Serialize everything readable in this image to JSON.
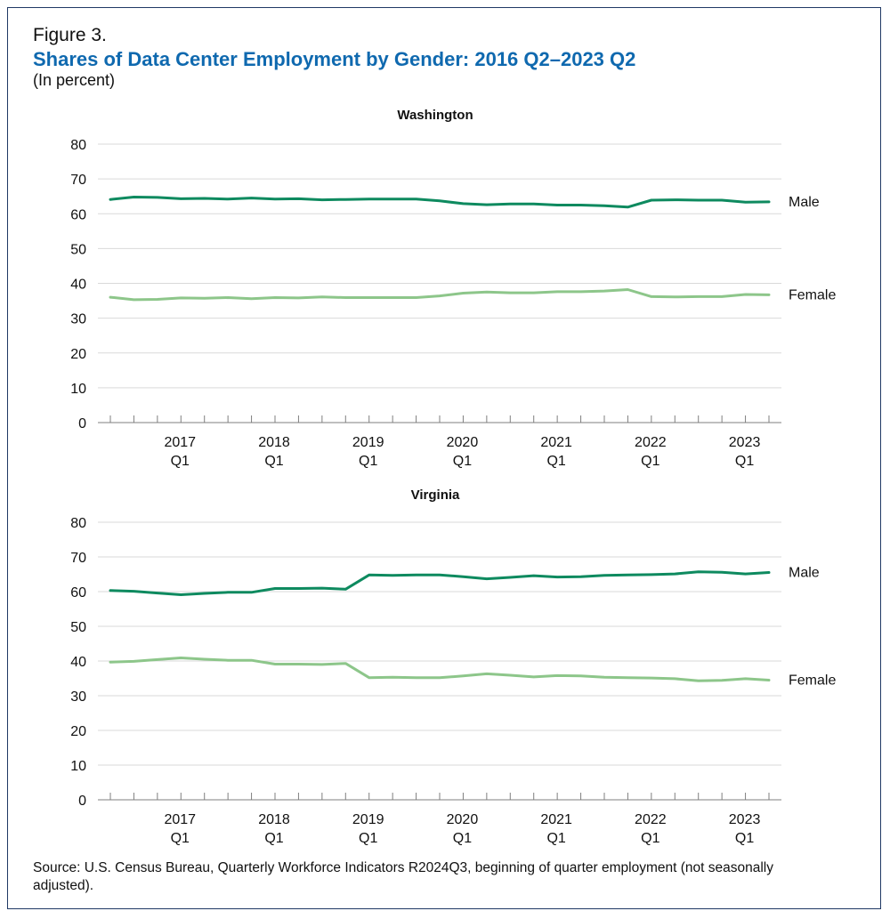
{
  "figure_label": "Figure 3.",
  "title": "Shares of Data Center Employment by Gender: 2016 Q2–2023 Q2",
  "subtitle": "(In percent)",
  "source": "Source: U.S. Census Bureau, Quarterly Workforce Indicators R2024Q3, beginning of quarter employment (not seasonally adjusted).",
  "colors": {
    "male": "#0e8a5f",
    "female": "#8dc68a",
    "grid": "#d9d9d9",
    "axis": "#7f7f7f",
    "title": "#0f69af",
    "border": "#1f3864"
  },
  "chart_data": [
    {
      "type": "line",
      "title": "Washington",
      "ylim": [
        0,
        80
      ],
      "yticks": [
        0,
        10,
        20,
        30,
        40,
        50,
        60,
        70,
        80
      ],
      "x": [
        "2016 Q2",
        "2016 Q3",
        "2016 Q4",
        "2017 Q1",
        "2017 Q2",
        "2017 Q3",
        "2017 Q4",
        "2018 Q1",
        "2018 Q2",
        "2018 Q3",
        "2018 Q4",
        "2019 Q1",
        "2019 Q2",
        "2019 Q3",
        "2019 Q4",
        "2020 Q1",
        "2020 Q2",
        "2020 Q3",
        "2020 Q4",
        "2021 Q1",
        "2021 Q2",
        "2021 Q3",
        "2021 Q4",
        "2022 Q1",
        "2022 Q2",
        "2022 Q3",
        "2022 Q4",
        "2023 Q1",
        "2023 Q2"
      ],
      "x_tick_labels": [
        {
          "index": 3,
          "year": "2017",
          "quarter": "Q1"
        },
        {
          "index": 7,
          "year": "2018",
          "quarter": "Q1"
        },
        {
          "index": 11,
          "year": "2019",
          "quarter": "Q1"
        },
        {
          "index": 15,
          "year": "2020",
          "quarter": "Q1"
        },
        {
          "index": 19,
          "year": "2021",
          "quarter": "Q1"
        },
        {
          "index": 23,
          "year": "2022",
          "quarter": "Q1"
        },
        {
          "index": 27,
          "year": "2023",
          "quarter": "Q1"
        }
      ],
      "grid": true,
      "series": [
        {
          "name": "Male",
          "color_key": "male",
          "values": [
            64.1,
            64.8,
            64.7,
            64.3,
            64.4,
            64.2,
            64.5,
            64.2,
            64.3,
            64.0,
            64.1,
            64.2,
            64.2,
            64.2,
            63.7,
            62.9,
            62.6,
            62.8,
            62.8,
            62.5,
            62.5,
            62.3,
            61.9,
            63.9,
            64.0,
            63.9,
            63.9,
            63.3,
            63.4
          ]
        },
        {
          "name": "Female",
          "color_key": "female",
          "values": [
            36.0,
            35.3,
            35.4,
            35.8,
            35.7,
            35.9,
            35.6,
            35.9,
            35.8,
            36.1,
            35.9,
            35.9,
            35.9,
            35.9,
            36.4,
            37.2,
            37.5,
            37.3,
            37.3,
            37.6,
            37.6,
            37.8,
            38.2,
            36.2,
            36.1,
            36.2,
            36.2,
            36.8,
            36.7
          ]
        }
      ]
    },
    {
      "type": "line",
      "title": "Virginia",
      "ylim": [
        0,
        80
      ],
      "yticks": [
        0,
        10,
        20,
        30,
        40,
        50,
        60,
        70,
        80
      ],
      "x": [
        "2016 Q2",
        "2016 Q3",
        "2016 Q4",
        "2017 Q1",
        "2017 Q2",
        "2017 Q3",
        "2017 Q4",
        "2018 Q1",
        "2018 Q2",
        "2018 Q3",
        "2018 Q4",
        "2019 Q1",
        "2019 Q2",
        "2019 Q3",
        "2019 Q4",
        "2020 Q1",
        "2020 Q2",
        "2020 Q3",
        "2020 Q4",
        "2021 Q1",
        "2021 Q2",
        "2021 Q3",
        "2021 Q4",
        "2022 Q1",
        "2022 Q2",
        "2022 Q3",
        "2022 Q4",
        "2023 Q1",
        "2023 Q2"
      ],
      "x_tick_labels": [
        {
          "index": 3,
          "year": "2017",
          "quarter": "Q1"
        },
        {
          "index": 7,
          "year": "2018",
          "quarter": "Q1"
        },
        {
          "index": 11,
          "year": "2019",
          "quarter": "Q1"
        },
        {
          "index": 15,
          "year": "2020",
          "quarter": "Q1"
        },
        {
          "index": 19,
          "year": "2021",
          "quarter": "Q1"
        },
        {
          "index": 23,
          "year": "2022",
          "quarter": "Q1"
        },
        {
          "index": 27,
          "year": "2023",
          "quarter": "Q1"
        }
      ],
      "grid": true,
      "series": [
        {
          "name": "Male",
          "color_key": "male",
          "values": [
            60.3,
            60.1,
            59.6,
            59.1,
            59.5,
            59.8,
            59.8,
            60.9,
            60.9,
            61.0,
            60.7,
            64.8,
            64.7,
            64.8,
            64.8,
            64.3,
            63.7,
            64.1,
            64.6,
            64.2,
            64.3,
            64.7,
            64.8,
            64.9,
            65.1,
            65.7,
            65.6,
            65.1,
            65.5
          ]
        },
        {
          "name": "Female",
          "color_key": "female",
          "values": [
            39.7,
            39.9,
            40.4,
            40.9,
            40.5,
            40.2,
            40.2,
            39.1,
            39.1,
            39.0,
            39.3,
            35.2,
            35.3,
            35.2,
            35.2,
            35.7,
            36.3,
            35.9,
            35.4,
            35.8,
            35.7,
            35.3,
            35.2,
            35.1,
            34.9,
            34.3,
            34.4,
            34.9,
            34.5
          ]
        }
      ]
    }
  ]
}
